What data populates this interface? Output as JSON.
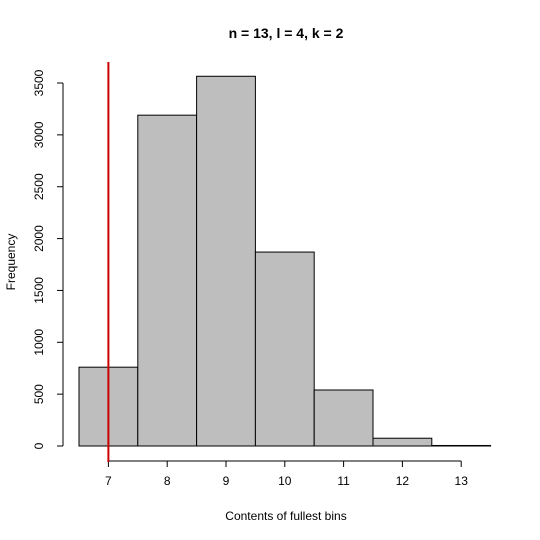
{
  "chart_data": {
    "type": "bar",
    "title": "n = 13, l = 4, k = 2",
    "xlabel": "Contents of fullest bins",
    "ylabel": "Frequency",
    "bins": [
      {
        "left": 6.5,
        "right": 7.5,
        "value": 760
      },
      {
        "left": 7.5,
        "right": 8.5,
        "value": 3190
      },
      {
        "left": 8.5,
        "right": 9.5,
        "value": 3565
      },
      {
        "left": 9.5,
        "right": 10.5,
        "value": 1870
      },
      {
        "left": 10.5,
        "right": 11.5,
        "value": 540
      },
      {
        "left": 11.5,
        "right": 12.5,
        "value": 75
      },
      {
        "left": 12.5,
        "right": 13.5,
        "value": 5
      }
    ],
    "x_ticks": [
      "7",
      "8",
      "9",
      "10",
      "11",
      "12",
      "13"
    ],
    "y_ticks": [
      "0",
      "500",
      "1000",
      "1500",
      "2000",
      "2500",
      "3000",
      "3500"
    ],
    "xlim": [
      6.5,
      13.5
    ],
    "ylim": [
      0,
      3700
    ],
    "reference_line": {
      "x": 7,
      "color": "#cc0000"
    },
    "bar_color": "#bebebe",
    "grid": false
  }
}
